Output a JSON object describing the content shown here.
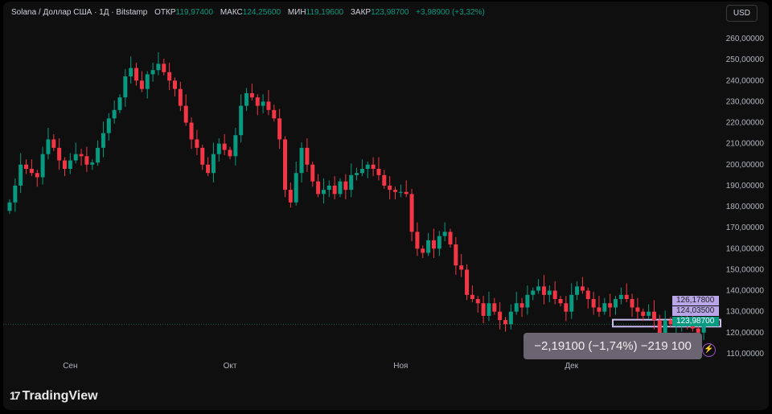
{
  "header": {
    "symbol": "Solana / Доллар США · 1Д · Bitstamp",
    "open_label": "ОТКР",
    "open": "119,97400",
    "high_label": "МАКС",
    "high": "124,25600",
    "low_label": "МИН",
    "low": "119,19600",
    "close_label": "ЗАКР",
    "close": "123,98700",
    "change": "+3,98900 (+3,32%)"
  },
  "currency_button": "USD",
  "tooltip": "−2,19100 (−1,74%) −219 100",
  "badges": {
    "upper": "126,17800",
    "lower": "124,03500",
    "last": "123,98700"
  },
  "logo": "TradingView",
  "colors": {
    "up": "#089981",
    "down": "#f23645",
    "badge_purple": "#b9a6e8"
  },
  "chart_data": {
    "type": "candlestick",
    "ylim": [
      105,
      265
    ],
    "y_ticks": [
      "260,00000",
      "250,00000",
      "240,00000",
      "230,00000",
      "220,00000",
      "210,00000",
      "200,00000",
      "190,00000",
      "180,00000",
      "170,00000",
      "160,00000",
      "150,00000",
      "140,00000",
      "130,00000",
      "120,00000",
      "110,00000"
    ],
    "y_tick_values": [
      260,
      250,
      240,
      230,
      220,
      210,
      200,
      190,
      180,
      170,
      160,
      150,
      140,
      130,
      120,
      110
    ],
    "x_ticks": [
      {
        "label": "Сен",
        "index": 11
      },
      {
        "label": "Окт",
        "index": 40
      },
      {
        "label": "Ноя",
        "index": 71
      },
      {
        "label": "Дек",
        "index": 102
      }
    ],
    "first_open": 178,
    "closes": [
      182,
      190,
      200,
      198,
      196,
      194,
      205,
      212,
      208,
      202,
      198,
      202,
      205,
      204,
      200,
      201,
      208,
      215,
      222,
      226,
      232,
      242,
      246,
      240,
      236,
      243,
      245,
      248,
      244,
      240,
      236,
      228,
      220,
      212,
      208,
      200,
      196,
      205,
      210,
      207,
      204,
      214,
      228,
      234,
      232,
      228,
      230,
      226,
      222,
      212,
      188,
      182,
      196,
      208,
      200,
      192,
      186,
      188,
      190,
      186,
      192,
      188,
      195,
      196,
      198,
      200,
      198,
      195,
      190,
      188,
      187,
      187,
      186,
      168,
      160,
      158,
      164,
      160,
      166,
      168,
      162,
      152,
      150,
      138,
      136,
      134,
      128,
      134,
      130,
      126,
      124,
      130,
      134,
      132,
      138,
      140,
      142,
      138,
      140,
      136,
      134,
      130,
      138,
      142,
      140,
      136,
      132,
      130,
      134,
      132,
      136,
      138,
      136,
      132,
      130,
      128,
      130,
      126,
      118,
      126,
      124,
      124,
      126,
      124,
      122,
      120,
      124
    ]
  }
}
